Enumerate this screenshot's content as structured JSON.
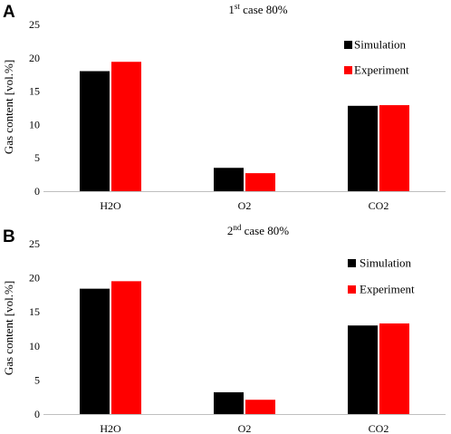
{
  "colors": {
    "simulation": "#000000",
    "experiment": "#ff0000",
    "axis": "#bfbfbf"
  },
  "chart_data": [
    {
      "type": "bar",
      "panel_label": "A",
      "title_main": "1",
      "title_sup": "st",
      "title_rest": " case 80%",
      "ylabel": "Gas content [vol.%]",
      "ylim": [
        0,
        25
      ],
      "yticks": [
        "0",
        "5",
        "10",
        "15",
        "20",
        "25"
      ],
      "categories": [
        "H2O",
        "O2",
        "CO2"
      ],
      "legend_position": "top-right",
      "series": [
        {
          "name": "Simulation",
          "values": [
            18.0,
            3.5,
            12.8
          ]
        },
        {
          "name": "Experiment",
          "values": [
            19.4,
            2.7,
            12.9
          ]
        }
      ]
    },
    {
      "type": "bar",
      "panel_label": "B",
      "title_main": "2",
      "title_sup": "nd",
      "title_rest": " case 80%",
      "ylabel": "Gas content [vol.%]",
      "ylim": [
        0,
        25
      ],
      "yticks": [
        "0",
        "5",
        "10",
        "15",
        "20",
        "25"
      ],
      "categories": [
        "H2O",
        "O2",
        "CO2"
      ],
      "legend_position": "top-right",
      "series": [
        {
          "name": "Simulation",
          "values": [
            18.4,
            3.2,
            13.0
          ]
        },
        {
          "name": "Experiment",
          "values": [
            19.5,
            2.1,
            13.3
          ]
        }
      ]
    }
  ]
}
